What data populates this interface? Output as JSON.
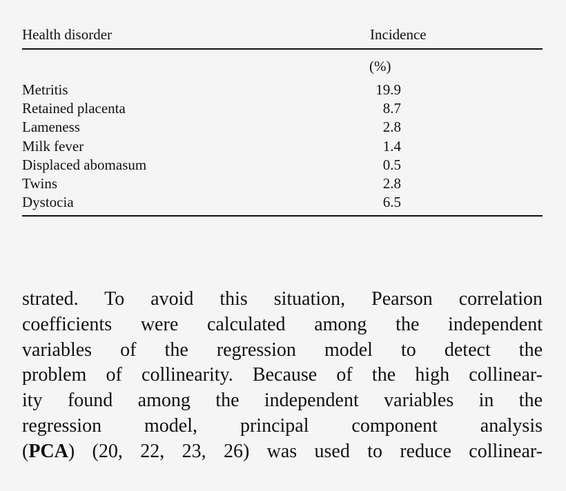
{
  "table": {
    "headers": [
      "Health disorder",
      "Incidence"
    ],
    "unit": "(%)",
    "rows": [
      [
        "Metritis",
        19.9
      ],
      [
        "Retained placenta",
        8.7
      ],
      [
        "Lameness",
        2.8
      ],
      [
        "Milk fever",
        1.4
      ],
      [
        "Displaced abomasum",
        0.5
      ],
      [
        "Twins",
        2.8
      ],
      [
        "Dystocia",
        6.5
      ]
    ]
  },
  "paragraph": {
    "lines": [
      "strated. To avoid this situation, Pearson correlation",
      "coefficients were calculated among the independent",
      "variables of the regression model to detect the",
      "problem of collinearity. Because of the high collinear-",
      "ity found among the independent variables in the",
      "regression model, principal component analysis"
    ],
    "last_line": [
      "(",
      "PCA",
      ") (20, 22, 23, 26) was used to reduce collinear-"
    ]
  }
}
